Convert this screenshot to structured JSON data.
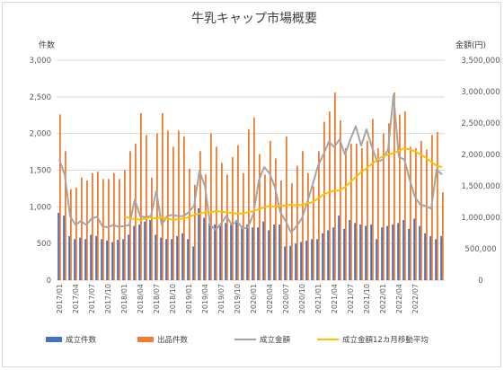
{
  "chart_data": {
    "type": "bar",
    "title": "牛乳キャップ市場概要",
    "left_axis_title": "件数",
    "right_axis_title": "金額(円)",
    "left_axis": {
      "min": 0,
      "max": 3000,
      "step": 500,
      "tick_labels": [
        "0",
        "500",
        "1,000",
        "1,500",
        "2,000",
        "2,500",
        "3,000"
      ]
    },
    "right_axis": {
      "min": 0,
      "max": 3500000,
      "step": 500000,
      "tick_labels": [
        "0",
        "500,000",
        "1,000,000",
        "1,500,000",
        "2,000,000",
        "2,500,000",
        "3,000,000",
        "3,500,000"
      ]
    },
    "x_tick_labels": [
      "2017/01",
      "2017/04",
      "2017/07",
      "2017/10",
      "2018/01",
      "2018/04",
      "2018/07",
      "2018/10",
      "2019/01",
      "2019/04",
      "2019/07",
      "2019/10",
      "2020/01",
      "2020/04",
      "2020/07",
      "2020/10",
      "2021/01",
      "2021/04",
      "2021/07",
      "2021/10",
      "2022/01",
      "2022/04",
      "2022/07"
    ],
    "colors": {
      "count_sold": "#4472c4",
      "count_listed": "#ed7d31",
      "amount": "#a5a5a5",
      "amount_ma12": "#ffc000"
    },
    "series": [
      {
        "name": "成立件数",
        "axis": "left",
        "type": "bar",
        "values": [
          920,
          880,
          600,
          560,
          580,
          560,
          620,
          600,
          560,
          540,
          520,
          550,
          560,
          620,
          740,
          760,
          800,
          820,
          620,
          580,
          560,
          560,
          600,
          640,
          560,
          460,
          980,
          850,
          780,
          760,
          740,
          780,
          760,
          820,
          740,
          760,
          720,
          720,
          800,
          680,
          760,
          760,
          460,
          470,
          500,
          520,
          540,
          560,
          560,
          640,
          680,
          720,
          880,
          700,
          820,
          780,
          760,
          740,
          760,
          560,
          720,
          740,
          760,
          780,
          820,
          700,
          840,
          740,
          640,
          600,
          560,
          600
        ]
      },
      {
        "name": "出品件数",
        "axis": "left",
        "type": "bar",
        "values": [
          2260,
          1760,
          1240,
          1260,
          1400,
          1360,
          1460,
          1480,
          1380,
          1380,
          1460,
          1380,
          1500,
          1760,
          1860,
          2280,
          1980,
          1400,
          2000,
          2280,
          2040,
          1820,
          2040,
          1960,
          1520,
          1300,
          1760,
          1440,
          2000,
          1820,
          1600,
          1440,
          1680,
          1840,
          1460,
          2060,
          2220,
          1720,
          1440,
          1900,
          1660,
          1360,
          1960,
          1320,
          1560,
          1760,
          1460,
          1280,
          1760,
          2160,
          2300,
          2560,
          2180,
          1800,
          1860,
          1860,
          1800,
          1900,
          2200,
          1800,
          2000,
          2140,
          2560,
          2260,
          2300,
          1820,
          1800,
          1900,
          1780,
          1980,
          2020,
          1200
        ]
      },
      {
        "name": "成立金額",
        "axis": "right",
        "type": "line",
        "values": [
          1920000,
          1680000,
          1020000,
          880000,
          940000,
          880000,
          980000,
          1010000,
          860000,
          840000,
          880000,
          850000,
          860000,
          880000,
          1280000,
          1020000,
          1000000,
          1020000,
          1420000,
          880000,
          1020000,
          1040000,
          1020000,
          1020000,
          1080000,
          1180000,
          1740000,
          1500000,
          880000,
          800000,
          900000,
          1020000,
          880000,
          940000,
          820000,
          840000,
          1050000,
          1580000,
          1800000,
          1700000,
          1480000,
          1080000,
          940000,
          760000,
          860000,
          980000,
          1240000,
          1520000,
          1820000,
          2000000,
          2200000,
          2120000,
          2240000,
          2000000,
          2240000,
          2450000,
          2140000,
          2400000,
          2120000,
          1880000,
          1920000,
          2080000,
          2940000,
          1960000,
          1920000,
          1600000,
          1320000,
          1200000,
          1180000,
          1140000,
          1760000,
          1680000
        ]
      },
      {
        "name": "成立金額12カ月移動平均",
        "axis": "right",
        "type": "line",
        "start_index": 12,
        "values": [
          1010000,
          990000,
          970000,
          960000,
          980000,
          1000000,
          980000,
          1000000,
          980000,
          960000,
          970000,
          980000,
          1000000,
          1040000,
          1060000,
          1080000,
          1070000,
          1100000,
          1090000,
          1080000,
          1070000,
          1060000,
          1060000,
          1080000,
          1100000,
          1130000,
          1160000,
          1180000,
          1170000,
          1180000,
          1190000,
          1200000,
          1190000,
          1200000,
          1220000,
          1240000,
          1300000,
          1360000,
          1400000,
          1420000,
          1430000,
          1480000,
          1560000,
          1640000,
          1720000,
          1780000,
          1850000,
          1920000,
          1970000,
          2000000,
          2020000,
          2060000,
          2100000,
          2080000,
          2050000,
          2000000,
          1950000,
          1880000,
          1820000,
          1800000
        ]
      }
    ]
  }
}
